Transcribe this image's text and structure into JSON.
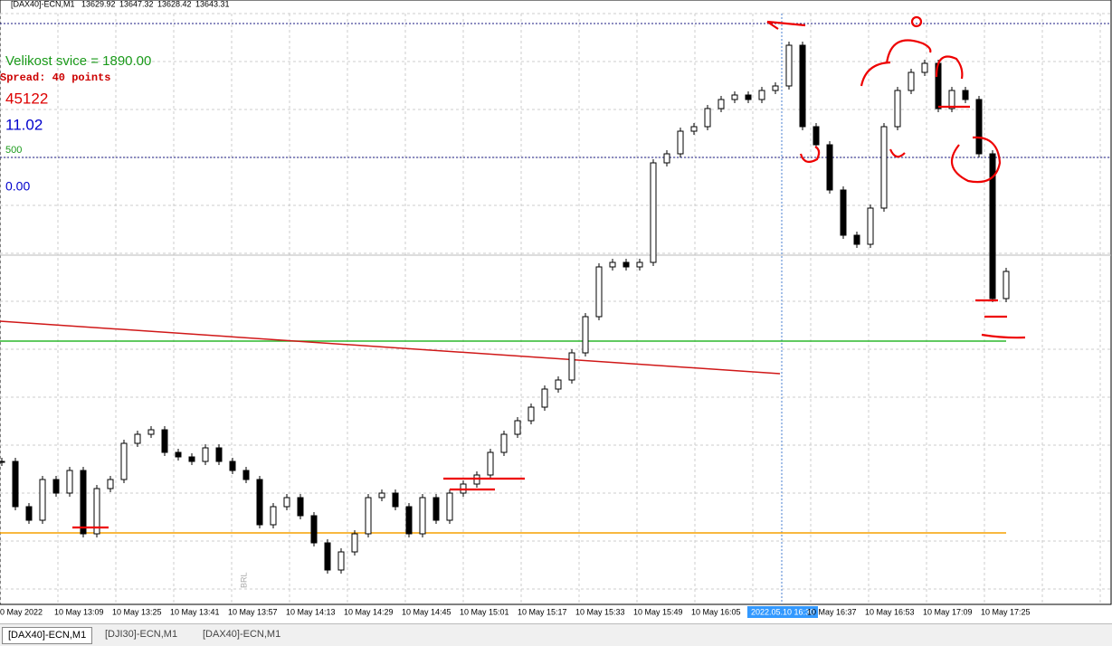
{
  "header": {
    "symbol": "[DAX40]-ECN,M1",
    "open": "13629.92",
    "high": "13647.32",
    "low": "13628.42",
    "close": "13643.31"
  },
  "overlay": {
    "candle_size": "Velikost svice = 1890.00",
    "spread": "Spread: 40 points",
    "counter": "45122",
    "value_blue": "11.02",
    "level_label": "500",
    "value_zero": "0.00"
  },
  "watermark": "BRL",
  "chart": {
    "type": "candlestick",
    "ylim": [
      0,
      645
    ],
    "closes": [
      150,
      100,
      85,
      130,
      115,
      140,
      70,
      120,
      130,
      170,
      180,
      185,
      160,
      155,
      150,
      165,
      150,
      140,
      130,
      80,
      100,
      110,
      90,
      60,
      30,
      50,
      70,
      110,
      115,
      100,
      70,
      110,
      85,
      115,
      125,
      135,
      160,
      180,
      195,
      210,
      230,
      240,
      270,
      310,
      365,
      370,
      365,
      370,
      480,
      490,
      515,
      520,
      540,
      550,
      555,
      550,
      560,
      565,
      610,
      520,
      500,
      450,
      400,
      390,
      430,
      520,
      560,
      580,
      590,
      540,
      560,
      550,
      490,
      330,
      360
    ],
    "levels": {
      "blue_top": 634,
      "blue_mid": 486,
      "gray": 378,
      "green": 283,
      "orange": 71,
      "trend_start": 305,
      "trend_end": 247
    }
  },
  "x_axis": {
    "labels": [
      "0 May 2022",
      "10 May 13:09",
      "10 May 13:25",
      "10 May 13:41",
      "10 May 13:57",
      "10 May 14:13",
      "10 May 14:29",
      "10 May 14:45",
      "10 May 15:01",
      "10 May 15:17",
      "10 May 15:33",
      "10 May 15:49",
      "10 May 16:05",
      "2022.05.10 16:30",
      "10 May 16:37",
      "10 May 16:53",
      "10 May 17:09",
      "10 May 17:25"
    ]
  },
  "tabs": [
    "[DAX40]-ECN,M1",
    "[DJI30]-ECN,M1",
    "[DAX40]-ECN,M1"
  ]
}
